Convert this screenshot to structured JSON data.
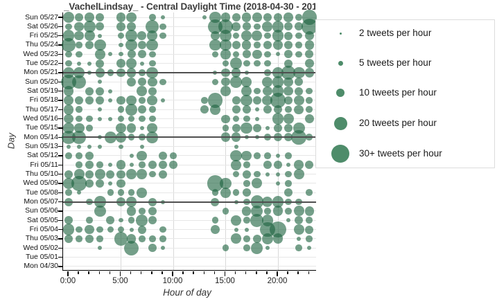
{
  "title": "_VachelLindsay_ - Central Daylight Time (2018-04-30 - 201",
  "axis": {
    "x_label": "Hour of day",
    "y_label": "Day",
    "x_major_ticks": [
      {
        "hour": 0,
        "label": "0:00"
      },
      {
        "hour": 5,
        "label": "5:00"
      },
      {
        "hour": 10,
        "label": "10:00"
      },
      {
        "hour": 15,
        "label": "15:00"
      },
      {
        "hour": 20,
        "label": "20:00"
      }
    ],
    "x_gridline_hours": [
      5,
      10,
      15,
      20
    ]
  },
  "legend": {
    "items": [
      {
        "label": "2 tweets per hour",
        "value": 2,
        "diameter": 3
      },
      {
        "label": "5 tweets per hour",
        "value": 5,
        "diameter": 7
      },
      {
        "label": "10 tweets per hour",
        "value": 10,
        "diameter": 12
      },
      {
        "label": "20 tweets per hour",
        "value": 20,
        "diameter": 19
      },
      {
        "label": "30+ tweets per hour",
        "value": 30,
        "diameter": 26
      }
    ]
  },
  "colors": {
    "bubble_fill": "rgba(30,100,65,0.62)",
    "legend_dot": "#4e8c6a",
    "week_separator": "#4f4f4f",
    "gridline": "#e7e7e7",
    "axis_line": "#000000"
  },
  "chart_data": {
    "type": "bubble",
    "x_unit": "hour of day (0-23)",
    "y_unit": "day",
    "value_unit": "tweets per hour",
    "week_separator_days": [
      "Mon 05/21",
      "Mon 05/14",
      "Mon 05/07"
    ],
    "days": [
      "Sun 05/27",
      "Sat 05/26",
      "Fri 05/25",
      "Thu 05/24",
      "Wed 05/23",
      "Tue 05/22",
      "Mon 05/21",
      "Sun 05/20",
      "Sat 05/19",
      "Fri 05/18",
      "Thu 05/17",
      "Wed 05/16",
      "Tue 05/15",
      "Mon 05/14",
      "Sun 05/13",
      "Sat 05/12",
      "Fri 05/11",
      "Thu 05/10",
      "Wed 05/09",
      "Tue 05/08",
      "Mon 05/07",
      "Sun 05/06",
      "Sat 05/05",
      "Fri 05/04",
      "Thu 05/03",
      "Wed 05/02",
      "Tue 05/01",
      "Mon 04/30"
    ],
    "values_by_day": [
      [
        15,
        8,
        10,
        8,
        0,
        10,
        12,
        0,
        5,
        2,
        0,
        0,
        0,
        2,
        15,
        10,
        8,
        10,
        10,
        8,
        8,
        10,
        5,
        25
      ],
      [
        5,
        10,
        15,
        8,
        0,
        10,
        10,
        0,
        20,
        5,
        0,
        0,
        0,
        0,
        25,
        25,
        10,
        8,
        5,
        12,
        15,
        8,
        8,
        30
      ],
      [
        15,
        10,
        12,
        2,
        0,
        5,
        15,
        10,
        12,
        5,
        0,
        0,
        0,
        0,
        10,
        15,
        5,
        12,
        12,
        5,
        15,
        8,
        5,
        10
      ],
      [
        20,
        5,
        8,
        15,
        0,
        2,
        15,
        8,
        15,
        0,
        0,
        0,
        0,
        0,
        15,
        15,
        8,
        10,
        5,
        8,
        12,
        8,
        5,
        10
      ],
      [
        5,
        5,
        0,
        12,
        2,
        2,
        8,
        8,
        5,
        0,
        0,
        0,
        0,
        0,
        5,
        12,
        5,
        8,
        10,
        5,
        2,
        8,
        5,
        8
      ],
      [
        5,
        2,
        2,
        8,
        0,
        10,
        12,
        2,
        5,
        0,
        0,
        0,
        0,
        0,
        0,
        5,
        15,
        5,
        5,
        5,
        0,
        8,
        0,
        10
      ],
      [
        15,
        15,
        2,
        10,
        5,
        8,
        10,
        5,
        15,
        0,
        0,
        0,
        0,
        0,
        2,
        8,
        10,
        2,
        0,
        5,
        15,
        20,
        15,
        10
      ],
      [
        25,
        20,
        0,
        2,
        0,
        0,
        10,
        8,
        10,
        5,
        0,
        0,
        0,
        0,
        5,
        8,
        15,
        12,
        0,
        12,
        15,
        10,
        8,
        0
      ],
      [
        12,
        0,
        8,
        8,
        2,
        0,
        0,
        12,
        8,
        0,
        0,
        0,
        0,
        0,
        0,
        12,
        0,
        12,
        5,
        10,
        15,
        10,
        8,
        5
      ],
      [
        12,
        8,
        8,
        8,
        2,
        8,
        12,
        5,
        12,
        2,
        0,
        0,
        0,
        5,
        25,
        0,
        8,
        15,
        8,
        12,
        25,
        8,
        12,
        5
      ],
      [
        12,
        5,
        0,
        2,
        0,
        5,
        15,
        8,
        5,
        0,
        0,
        0,
        0,
        8,
        12,
        0,
        8,
        8,
        2,
        8,
        8,
        5,
        10,
        5
      ],
      [
        10,
        5,
        5,
        2,
        2,
        5,
        5,
        5,
        5,
        0,
        0,
        0,
        0,
        0,
        0,
        8,
        5,
        5,
        2,
        0,
        15,
        12,
        0,
        10
      ],
      [
        15,
        12,
        5,
        0,
        0,
        12,
        10,
        2,
        12,
        0,
        0,
        0,
        0,
        0,
        0,
        5,
        8,
        15,
        8,
        2,
        8,
        8,
        15,
        0
      ],
      [
        20,
        20,
        0,
        2,
        15,
        12,
        5,
        5,
        15,
        0,
        0,
        0,
        0,
        0,
        0,
        10,
        10,
        2,
        2,
        5,
        8,
        8,
        25,
        5
      ],
      [
        2,
        2,
        2,
        2,
        0,
        2,
        0,
        2,
        0,
        0,
        0,
        0,
        0,
        0,
        0,
        0,
        2,
        0,
        0,
        0,
        0,
        0,
        0,
        0
      ],
      [
        5,
        5,
        8,
        0,
        0,
        0,
        2,
        12,
        0,
        8,
        5,
        0,
        0,
        0,
        0,
        0,
        15,
        12,
        5,
        5,
        2,
        5,
        0,
        0
      ],
      [
        0,
        5,
        8,
        5,
        2,
        10,
        2,
        5,
        8,
        8,
        8,
        0,
        0,
        0,
        0,
        0,
        12,
        5,
        0,
        8,
        8,
        2,
        10,
        8
      ],
      [
        8,
        12,
        8,
        12,
        8,
        8,
        12,
        12,
        5,
        8,
        0,
        0,
        0,
        0,
        0,
        0,
        5,
        8,
        5,
        2,
        2,
        5,
        12,
        0
      ],
      [
        15,
        25,
        8,
        8,
        2,
        8,
        0,
        0,
        0,
        0,
        0,
        0,
        0,
        0,
        30,
        15,
        0,
        5,
        12,
        0,
        2,
        5,
        0,
        0
      ],
      [
        5,
        2,
        0,
        0,
        5,
        5,
        5,
        12,
        0,
        0,
        0,
        0,
        0,
        0,
        5,
        12,
        5,
        8,
        0,
        0,
        0,
        8,
        0,
        5
      ],
      [
        8,
        0,
        5,
        15,
        0,
        10,
        12,
        0,
        8,
        2,
        0,
        0,
        0,
        0,
        8,
        0,
        2,
        5,
        18,
        12,
        15,
        5,
        5,
        0
      ],
      [
        0,
        0,
        0,
        15,
        0,
        0,
        10,
        5,
        8,
        0,
        0,
        0,
        0,
        0,
        0,
        5,
        0,
        10,
        15,
        5,
        12,
        5,
        12,
        10
      ],
      [
        8,
        0,
        5,
        0,
        8,
        2,
        5,
        15,
        8,
        0,
        0,
        0,
        0,
        0,
        5,
        0,
        12,
        5,
        20,
        15,
        0,
        2,
        8,
        5
      ],
      [
        15,
        5,
        10,
        5,
        5,
        5,
        2,
        8,
        0,
        5,
        0,
        0,
        0,
        0,
        10,
        0,
        2,
        2,
        0,
        25,
        30,
        0,
        12,
        8
      ],
      [
        8,
        5,
        8,
        5,
        0,
        20,
        10,
        5,
        5,
        5,
        0,
        0,
        0,
        0,
        0,
        0,
        12,
        5,
        8,
        15,
        12,
        0,
        2,
        5
      ],
      [
        0,
        0,
        0,
        2,
        0,
        0,
        25,
        0,
        8,
        2,
        0,
        0,
        0,
        0,
        0,
        5,
        0,
        5,
        15,
        2,
        0,
        0,
        5,
        2
      ],
      [
        0,
        0,
        0,
        0,
        0,
        0,
        0,
        0,
        0,
        0,
        0,
        0,
        0,
        0,
        0,
        0,
        0,
        0,
        0,
        0,
        0,
        0,
        0,
        0
      ],
      [
        0,
        0,
        0,
        0,
        0,
        0,
        0,
        0,
        0,
        0,
        0,
        0,
        0,
        0,
        0,
        0,
        0,
        0,
        0,
        0,
        0,
        0,
        0,
        0
      ]
    ]
  }
}
